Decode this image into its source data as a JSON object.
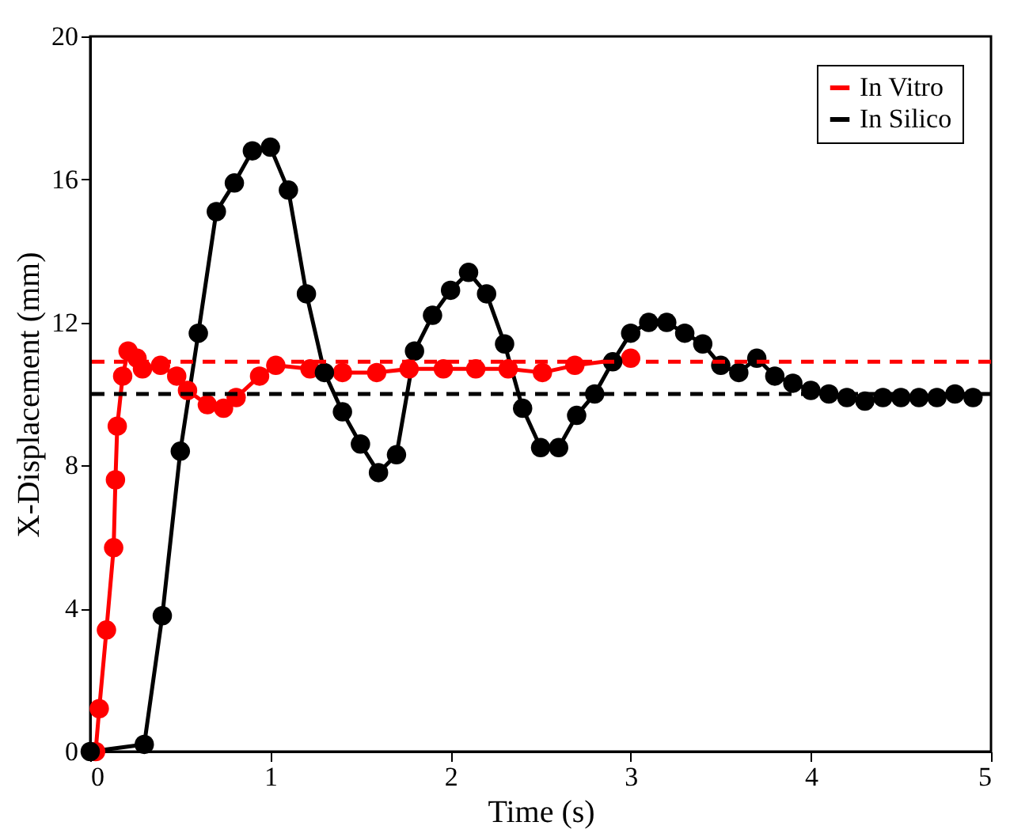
{
  "chart_data": {
    "type": "line",
    "xlabel": "Time (s)",
    "ylabel": "X-Displacement  (mm)",
    "xlim": [
      0,
      5
    ],
    "xticks": [
      0,
      1,
      2,
      3,
      4,
      5
    ],
    "ylim": [
      0,
      20
    ],
    "yticks": [
      0,
      4,
      8,
      12,
      16,
      20
    ],
    "grid": false,
    "legend": "top right",
    "marker": "circle",
    "line_style": "solid",
    "series": [
      {
        "name": "In Vitro",
        "color": "#ff0000",
        "x": [
          0.03,
          0.05,
          0.09,
          0.13,
          0.14,
          0.15,
          0.18,
          0.21,
          0.26,
          0.29,
          0.39,
          0.48,
          0.54,
          0.65,
          0.74,
          0.81,
          0.94,
          1.03,
          1.22,
          1.4,
          1.59,
          1.77,
          1.96,
          2.14,
          2.32,
          2.51,
          2.69,
          3.0
        ],
        "values": [
          0,
          1.2,
          3.4,
          5.7,
          7.6,
          9.1,
          10.5,
          11.2,
          11.0,
          10.7,
          10.8,
          10.5,
          10.1,
          9.7,
          9.6,
          9.9,
          10.5,
          10.8,
          10.7,
          10.6,
          10.6,
          10.7,
          10.7,
          10.7,
          10.7,
          10.6,
          10.8,
          11.0
        ]
      },
      {
        "name": "In Silico",
        "color": "#000000",
        "x": [
          0,
          0.3,
          0.4,
          0.5,
          0.6,
          0.7,
          0.8,
          0.9,
          1.0,
          1.1,
          1.2,
          1.3,
          1.4,
          1.5,
          1.6,
          1.7,
          1.8,
          1.9,
          2.0,
          2.1,
          2.2,
          2.3,
          2.4,
          2.5,
          2.6,
          2.7,
          2.8,
          2.9,
          3.0,
          3.1,
          3.2,
          3.3,
          3.4,
          3.5,
          3.6,
          3.7,
          3.8,
          3.9,
          4.0,
          4.1,
          4.2,
          4.3,
          4.4,
          4.5,
          4.6,
          4.7,
          4.8,
          4.9
        ],
        "values": [
          0,
          0.2,
          3.8,
          8.4,
          11.7,
          15.1,
          15.9,
          16.8,
          16.9,
          15.7,
          12.8,
          10.6,
          9.5,
          8.6,
          7.8,
          8.3,
          11.2,
          12.2,
          12.9,
          13.4,
          12.8,
          11.4,
          9.6,
          8.5,
          8.5,
          9.4,
          10.0,
          10.9,
          11.7,
          12.0,
          12.0,
          11.7,
          11.4,
          10.8,
          10.6,
          11.0,
          10.5,
          10.3,
          10.1,
          10.0,
          9.9,
          9.8,
          9.9,
          9.9,
          9.9,
          9.9,
          10.0,
          9.9
        ]
      }
    ],
    "ref_lines": [
      {
        "axis": "y",
        "value": 10.9,
        "color": "#ff0000",
        "line_style": "dashed"
      },
      {
        "axis": "y",
        "value": 10,
        "color": "#000000",
        "line_style": "dashed"
      }
    ]
  }
}
